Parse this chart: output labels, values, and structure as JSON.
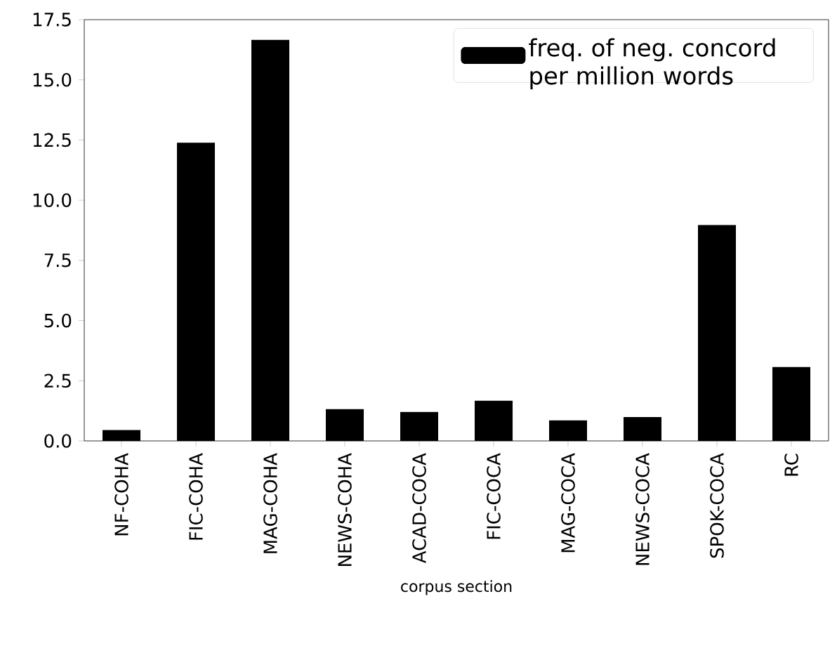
{
  "chart_data": {
    "type": "bar",
    "categories": [
      "NF-COHA",
      "FIC-COHA",
      "MAG-COHA",
      "NEWS-COHA",
      "ACAD-COCA",
      "FIC-COCA",
      "MAG-COCA",
      "NEWS-COCA",
      "SPOK-COCA",
      "RC"
    ],
    "series": [
      {
        "name": "freq. of neg. concord per million words",
        "color": "#000000",
        "values": [
          0.45,
          12.39,
          16.66,
          1.32,
          1.2,
          1.67,
          0.85,
          0.99,
          8.97,
          3.07
        ]
      }
    ],
    "xlabel": "corpus section",
    "ylim": [
      0,
      17.5
    ],
    "yticks": [
      {
        "value": 0,
        "label": "0.0"
      },
      {
        "value": 2.5,
        "label": "2.5"
      },
      {
        "value": 5,
        "label": "5.0"
      },
      {
        "value": 7.5,
        "label": "7.5"
      },
      {
        "value": 10,
        "label": "10.0"
      },
      {
        "value": 12.5,
        "label": "12.5"
      },
      {
        "value": 15,
        "label": "15.0"
      },
      {
        "value": 17.5,
        "label": "17.5"
      }
    ],
    "legend": "top right",
    "grid": false
  }
}
